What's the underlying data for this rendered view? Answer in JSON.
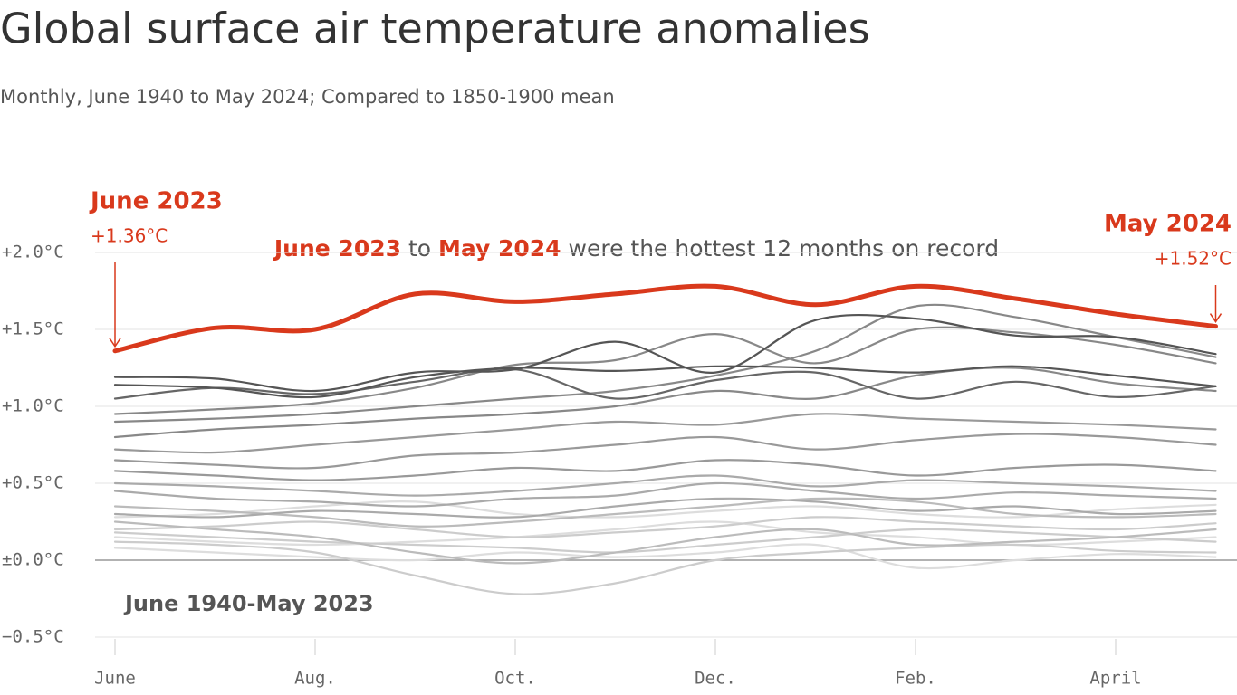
{
  "chart_data": {
    "type": "line",
    "title": "Global surface air temperature anomalies",
    "subtitle": "Monthly, June 1940 to May 2024; Compared to 1850-1900 mean",
    "categories": [
      "June",
      null,
      "Aug.",
      null,
      "Oct.",
      null,
      "Dec.",
      null,
      "Feb.",
      null,
      "April",
      null
    ],
    "ylim": [
      -0.5,
      2.0
    ],
    "yticks": [
      {
        "value": -0.5,
        "label": "−0.5°C"
      },
      {
        "value": 0,
        "label": "±0.0°C"
      },
      {
        "value": 0.5,
        "label": "+0.5°C"
      },
      {
        "value": 1.0,
        "label": "+1.0°C"
      },
      {
        "value": 1.5,
        "label": "+1.5°C"
      },
      {
        "value": 2.0,
        "label": "+2.0°C"
      }
    ],
    "grid": true,
    "series": [
      {
        "color": "#dddddd",
        "values": [
          0.08,
          0.05,
          0.02,
          0.0,
          0.05,
          0.02,
          0.05,
          0.1,
          -0.05,
          0.0,
          0.04,
          0.02
        ]
      },
      {
        "color": "#dddddd",
        "values": [
          0.15,
          0.12,
          0.1,
          0.12,
          0.15,
          0.2,
          0.25,
          0.18,
          0.15,
          0.1,
          0.12,
          0.15
        ]
      },
      {
        "color": "#dddddd",
        "values": [
          0.28,
          0.3,
          0.35,
          0.38,
          0.3,
          0.28,
          0.32,
          0.35,
          0.3,
          0.28,
          0.33,
          0.36
        ]
      },
      {
        "color": "#cccccc",
        "values": [
          0.18,
          0.15,
          0.12,
          0.1,
          0.08,
          0.05,
          0.1,
          0.15,
          0.2,
          0.18,
          0.15,
          0.12
        ]
      },
      {
        "color": "#cccccc",
        "values": [
          0.12,
          0.1,
          0.05,
          -0.1,
          -0.22,
          -0.15,
          0.0,
          0.05,
          0.08,
          0.1,
          0.06,
          0.05
        ]
      },
      {
        "color": "#cccccc",
        "values": [
          0.2,
          0.22,
          0.25,
          0.2,
          0.15,
          0.18,
          0.22,
          0.28,
          0.25,
          0.22,
          0.2,
          0.24
        ]
      },
      {
        "color": "#bbbbbb",
        "values": [
          0.35,
          0.32,
          0.28,
          0.22,
          0.25,
          0.3,
          0.35,
          0.4,
          0.38,
          0.3,
          0.28,
          0.3
        ]
      },
      {
        "color": "#bbbbbb",
        "values": [
          0.25,
          0.2,
          0.15,
          0.05,
          -0.02,
          0.05,
          0.15,
          0.2,
          0.1,
          0.12,
          0.15,
          0.2
        ]
      },
      {
        "color": "#aaaaaa",
        "values": [
          0.5,
          0.48,
          0.45,
          0.42,
          0.45,
          0.5,
          0.55,
          0.48,
          0.52,
          0.5,
          0.48,
          0.45
        ]
      },
      {
        "color": "#aaaaaa",
        "values": [
          0.45,
          0.4,
          0.38,
          0.35,
          0.4,
          0.42,
          0.5,
          0.45,
          0.4,
          0.44,
          0.42,
          0.4
        ]
      },
      {
        "color": "#aaaaaa",
        "values": [
          0.3,
          0.28,
          0.32,
          0.3,
          0.28,
          0.35,
          0.4,
          0.38,
          0.32,
          0.35,
          0.3,
          0.32
        ]
      },
      {
        "color": "#999999",
        "values": [
          0.72,
          0.7,
          0.75,
          0.8,
          0.85,
          0.9,
          0.88,
          0.95,
          0.92,
          0.9,
          0.88,
          0.85
        ]
      },
      {
        "color": "#999999",
        "values": [
          0.65,
          0.62,
          0.6,
          0.68,
          0.7,
          0.75,
          0.8,
          0.72,
          0.78,
          0.82,
          0.8,
          0.75
        ]
      },
      {
        "color": "#999999",
        "values": [
          0.58,
          0.55,
          0.52,
          0.55,
          0.6,
          0.58,
          0.65,
          0.62,
          0.55,
          0.6,
          0.62,
          0.58
        ]
      },
      {
        "color": "#888888",
        "values": [
          0.95,
          0.98,
          1.02,
          1.12,
          1.27,
          1.3,
          1.47,
          1.28,
          1.5,
          1.48,
          1.4,
          1.28
        ]
      },
      {
        "color": "#888888",
        "values": [
          0.9,
          0.92,
          0.95,
          1.0,
          1.05,
          1.1,
          1.2,
          1.36,
          1.65,
          1.58,
          1.45,
          1.32
        ]
      },
      {
        "color": "#888888",
        "values": [
          0.8,
          0.85,
          0.88,
          0.92,
          0.95,
          1.0,
          1.1,
          1.05,
          1.2,
          1.25,
          1.15,
          1.1
        ]
      },
      {
        "color": "#666666",
        "values": [
          1.05,
          1.12,
          1.08,
          1.16,
          1.24,
          1.05,
          1.17,
          1.22,
          1.05,
          1.16,
          1.06,
          1.13
        ]
      },
      {
        "color": "#555555",
        "values": [
          1.14,
          1.12,
          1.06,
          1.19,
          1.25,
          1.23,
          1.26,
          1.25,
          1.22,
          1.26,
          1.2,
          1.13
        ]
      },
      {
        "color": "#555555",
        "values": [
          1.19,
          1.18,
          1.1,
          1.22,
          1.24,
          1.42,
          1.22,
          1.56,
          1.57,
          1.46,
          1.45,
          1.34
        ]
      },
      {
        "color": "#d9391c",
        "values": [
          1.36,
          1.51,
          1.5,
          1.73,
          1.68,
          1.73,
          1.78,
          1.66,
          1.78,
          1.7,
          1.6,
          1.52
        ],
        "value_labels": [
          "+1.36°C",
          null,
          null,
          null,
          null,
          null,
          null,
          null,
          null,
          null,
          null,
          "+1.52°C"
        ]
      }
    ],
    "annotations": {
      "start_label": "June 2023",
      "end_label": "May 2024",
      "headline": [
        "June 2023",
        " to ",
        "May 2024",
        " were the hottest 12 months on record"
      ],
      "history_label": "June 1940-May 2023"
    }
  }
}
